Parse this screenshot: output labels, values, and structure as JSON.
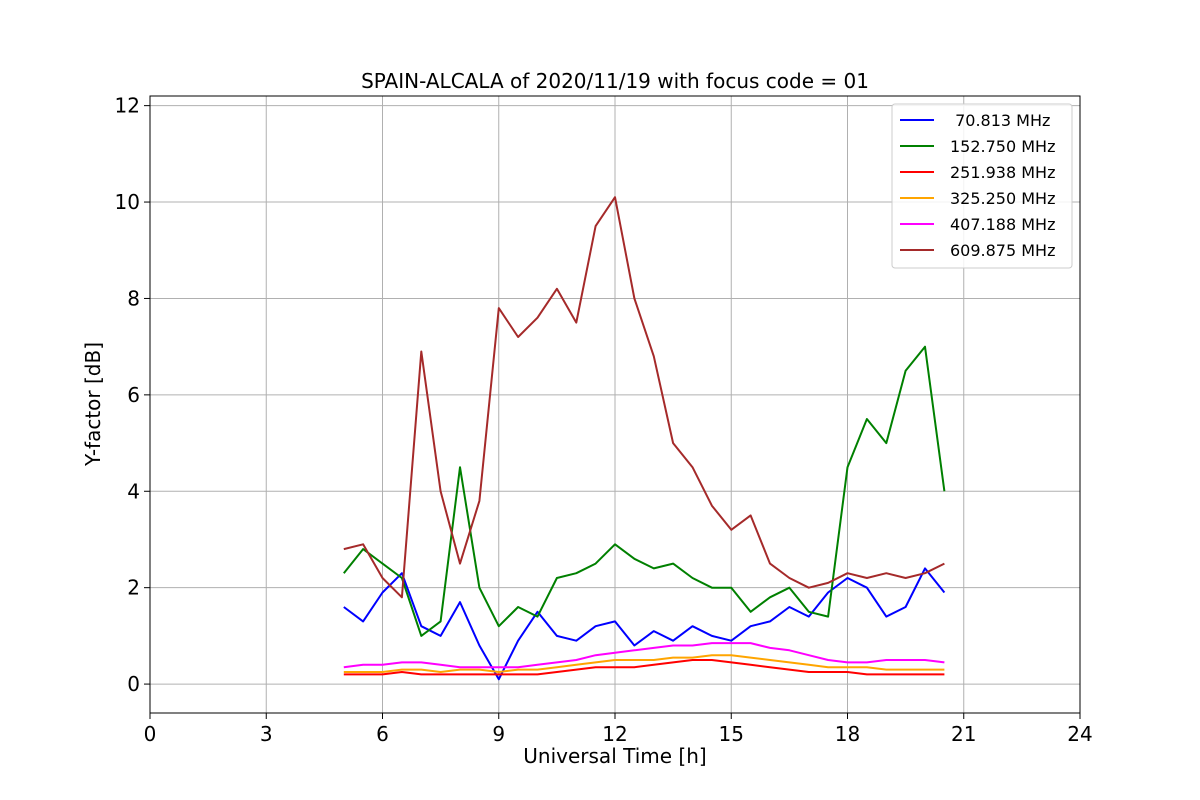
{
  "chart_data": {
    "type": "line",
    "title": "SPAIN-ALCALA of 2020/11/19 with focus code = 01",
    "xlabel": "Universal Time [h]",
    "ylabel": "Y-factor [dB]",
    "xlim": [
      0,
      24
    ],
    "ylim": [
      -0.6,
      12.2
    ],
    "xticks": [
      0,
      3,
      6,
      9,
      12,
      15,
      18,
      21,
      24
    ],
    "xtick_labels": [
      "0",
      "3",
      "6",
      "9",
      "12",
      "15",
      "18",
      "21",
      "24"
    ],
    "yticks": [
      0,
      2,
      4,
      6,
      8,
      10,
      12
    ],
    "ytick_labels": [
      "0",
      "2",
      "4",
      "6",
      "8",
      "10",
      "12"
    ],
    "grid": true,
    "legend_position": "top-right",
    "x": [
      5.0,
      5.5,
      6.0,
      6.5,
      7.0,
      7.5,
      8.0,
      8.5,
      9.0,
      9.5,
      10.0,
      10.5,
      11.0,
      11.5,
      12.0,
      12.5,
      13.0,
      13.5,
      14.0,
      14.5,
      15.0,
      15.5,
      16.0,
      16.5,
      17.0,
      17.5,
      18.0,
      18.5,
      19.0,
      19.5,
      20.0,
      20.5
    ],
    "series": [
      {
        "name": " 70.813 MHz",
        "color": "#0000ff",
        "values": [
          1.6,
          1.3,
          1.9,
          2.3,
          1.2,
          1.0,
          1.7,
          0.8,
          0.1,
          0.9,
          1.5,
          1.0,
          0.9,
          1.2,
          1.3,
          0.8,
          1.1,
          0.9,
          1.2,
          1.0,
          0.9,
          1.2,
          1.3,
          1.6,
          1.4,
          1.9,
          2.2,
          2.0,
          1.4,
          1.6,
          2.4,
          1.9
        ]
      },
      {
        "name": "152.750 MHz",
        "color": "#008000",
        "values": [
          2.3,
          2.8,
          2.5,
          2.2,
          1.0,
          1.3,
          4.5,
          2.0,
          1.2,
          1.6,
          1.4,
          2.2,
          2.3,
          2.5,
          2.9,
          2.6,
          2.4,
          2.5,
          2.2,
          2.0,
          2.0,
          1.5,
          1.8,
          2.0,
          1.5,
          1.4,
          4.5,
          5.5,
          5.0,
          6.5,
          7.0,
          4.0
        ]
      },
      {
        "name": "251.938 MHz",
        "color": "#ff0000",
        "values": [
          0.2,
          0.2,
          0.2,
          0.25,
          0.2,
          0.2,
          0.2,
          0.2,
          0.2,
          0.2,
          0.2,
          0.25,
          0.3,
          0.35,
          0.35,
          0.35,
          0.4,
          0.45,
          0.5,
          0.5,
          0.45,
          0.4,
          0.35,
          0.3,
          0.25,
          0.25,
          0.25,
          0.2,
          0.2,
          0.2,
          0.2,
          0.2
        ]
      },
      {
        "name": "325.250 MHz",
        "color": "#ffa500",
        "values": [
          0.25,
          0.25,
          0.25,
          0.3,
          0.3,
          0.25,
          0.3,
          0.3,
          0.25,
          0.3,
          0.3,
          0.35,
          0.4,
          0.45,
          0.5,
          0.5,
          0.5,
          0.55,
          0.55,
          0.6,
          0.6,
          0.55,
          0.5,
          0.45,
          0.4,
          0.35,
          0.35,
          0.35,
          0.3,
          0.3,
          0.3,
          0.3
        ]
      },
      {
        "name": "407.188 MHz",
        "color": "#ff00ff",
        "values": [
          0.35,
          0.4,
          0.4,
          0.45,
          0.45,
          0.4,
          0.35,
          0.35,
          0.35,
          0.35,
          0.4,
          0.45,
          0.5,
          0.6,
          0.65,
          0.7,
          0.75,
          0.8,
          0.8,
          0.85,
          0.85,
          0.85,
          0.75,
          0.7,
          0.6,
          0.5,
          0.45,
          0.45,
          0.5,
          0.5,
          0.5,
          0.45
        ]
      },
      {
        "name": "609.875 MHz",
        "color": "#a52a2a",
        "values": [
          2.8,
          2.9,
          2.2,
          1.8,
          6.9,
          4.0,
          2.5,
          3.8,
          7.8,
          7.2,
          7.6,
          8.2,
          7.5,
          9.5,
          10.1,
          8.0,
          6.8,
          5.0,
          4.5,
          3.7,
          3.2,
          3.5,
          2.5,
          2.2,
          2.0,
          2.1,
          2.3,
          2.2,
          2.3,
          2.2,
          2.3,
          2.5
        ]
      }
    ]
  }
}
